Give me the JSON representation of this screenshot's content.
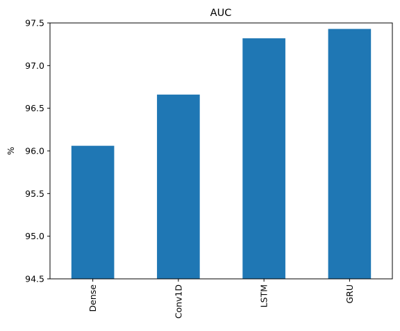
{
  "chart_data": {
    "type": "bar",
    "title": "AUC",
    "xlabel": "",
    "ylabel": "%",
    "categories": [
      "Dense",
      "Conv1D",
      "LSTM",
      "GRU"
    ],
    "values": [
      96.06,
      96.66,
      97.32,
      97.43
    ],
    "ylim": [
      94.5,
      97.5
    ],
    "yticks": [
      94.5,
      95.0,
      95.5,
      96.0,
      96.5,
      97.0,
      97.5
    ],
    "ytick_labels": [
      "94.5",
      "95.0",
      "95.5",
      "96.0",
      "96.5",
      "97.0",
      "97.5"
    ],
    "grid": false,
    "legend": "none",
    "bar_color": "#1f77b4"
  }
}
